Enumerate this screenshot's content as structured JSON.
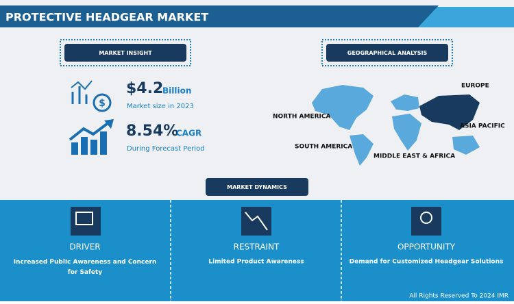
{
  "header": {
    "title": "PROTECTIVE HEADGEAR MARKET"
  },
  "market_insight": {
    "heading": "MARKET INSIGHT",
    "size": {
      "value": "$4.2",
      "unit": "Billion",
      "caption": "Market size in 2023"
    },
    "cagr": {
      "value": "8.54%",
      "unit": "CAGR",
      "caption": "During Forecast Period"
    }
  },
  "geographical_analysis": {
    "heading": "GEOGRAPHICAL ANALYSIS",
    "regions": [
      "NORTH AMERICA",
      "EUROPE",
      "ASIA PACIFIC",
      "SOUTH AMERICA",
      "MIDDLE EAST & AFRICA"
    ]
  },
  "market_dynamics": {
    "heading": "MARKET DYNAMICS",
    "panels": [
      {
        "title": "DRIVER",
        "text": "Increased Public Awareness and Concern for Safety"
      },
      {
        "title": "RESTRAINT",
        "text": "Limited Product Awareness"
      },
      {
        "title": "OPPORTUNITY",
        "text": "Demand for Customized Headgear Solutions"
      }
    ]
  },
  "footer": "All Rights Reserved To 2024 IMR"
}
